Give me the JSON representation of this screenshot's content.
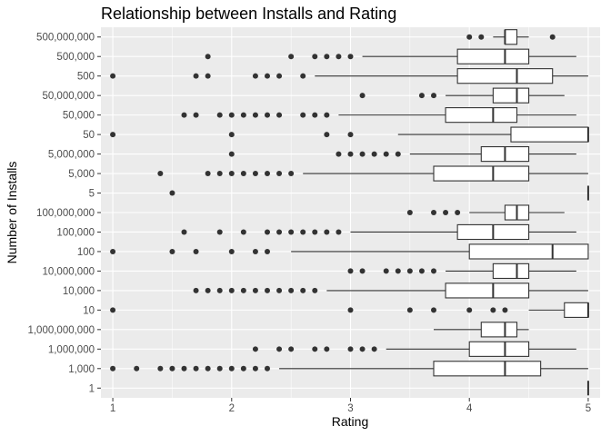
{
  "chart_data": {
    "type": "boxplot",
    "orientation": "horizontal",
    "title": "Relationship between Installs and Rating",
    "xlabel": "Rating",
    "ylabel": "Number of Installs",
    "xlim": [
      0.9,
      5.1
    ],
    "x_ticks": [
      1,
      2,
      3,
      4,
      5
    ],
    "x_tick_labels": [
      "1",
      "2",
      "3",
      "4",
      "5"
    ],
    "grid": true,
    "legend": "none",
    "colors": {
      "panel": "#ebebeb",
      "grid": "#ffffff",
      "box_fill": "#ffffff",
      "box_line": "#333333",
      "outlier": "#333333",
      "tick": "#333333"
    },
    "categories": [
      "500,000,000",
      "500,000",
      "500",
      "50,000,000",
      "50,000",
      "50",
      "5,000,000",
      "5,000",
      "5",
      "100,000,000",
      "100,000",
      "100",
      "10,000,000",
      "10,000",
      "10",
      "1,000,000,000",
      "1,000,000",
      "1,000",
      "1"
    ],
    "boxes": [
      {
        "category": "500,000,000",
        "whisker_low": 4.2,
        "q1": 4.3,
        "median": 4.3,
        "q3": 4.4,
        "whisker_high": 4.5,
        "outliers": [
          4.0,
          4.1,
          4.7
        ]
      },
      {
        "category": "500,000",
        "whisker_low": 3.1,
        "q1": 3.9,
        "median": 4.3,
        "q3": 4.5,
        "whisker_high": 4.9,
        "outliers": [
          1.8,
          2.5,
          2.7,
          2.8,
          2.9,
          3.0
        ]
      },
      {
        "category": "500",
        "whisker_low": 2.7,
        "q1": 3.9,
        "median": 4.4,
        "q3": 4.7,
        "whisker_high": 5.0,
        "outliers": [
          1.0,
          1.7,
          1.8,
          2.2,
          2.3,
          2.4,
          2.6
        ]
      },
      {
        "category": "50,000,000",
        "whisker_low": 3.8,
        "q1": 4.2,
        "median": 4.4,
        "q3": 4.5,
        "whisker_high": 4.8,
        "outliers": [
          3.1,
          3.6,
          3.7
        ]
      },
      {
        "category": "50,000",
        "whisker_low": 2.9,
        "q1": 3.8,
        "median": 4.2,
        "q3": 4.4,
        "whisker_high": 4.9,
        "outliers": [
          1.6,
          1.7,
          1.9,
          2.0,
          2.1,
          2.2,
          2.3,
          2.4,
          2.6,
          2.7,
          2.8
        ]
      },
      {
        "category": "50",
        "whisker_low": 3.4,
        "q1": 4.35,
        "median": 5.0,
        "q3": 5.0,
        "whisker_high": 5.0,
        "outliers": [
          1.0,
          2.0,
          2.8,
          3.0
        ]
      },
      {
        "category": "5,000,000",
        "whisker_low": 3.5,
        "q1": 4.1,
        "median": 4.3,
        "q3": 4.5,
        "whisker_high": 4.9,
        "outliers": [
          2.0,
          2.9,
          3.0,
          3.1,
          3.2,
          3.3,
          3.4
        ]
      },
      {
        "category": "5,000",
        "whisker_low": 2.6,
        "q1": 3.7,
        "median": 4.2,
        "q3": 4.5,
        "whisker_high": 5.0,
        "outliers": [
          1.4,
          1.8,
          1.9,
          2.0,
          2.1,
          2.2,
          2.3,
          2.4,
          2.5
        ]
      },
      {
        "category": "5",
        "whisker_low": 5.0,
        "q1": 5.0,
        "median": 5.0,
        "q3": 5.0,
        "whisker_high": 5.0,
        "outliers": [
          1.5
        ]
      },
      {
        "category": "100,000,000",
        "whisker_low": 4.0,
        "q1": 4.3,
        "median": 4.4,
        "q3": 4.5,
        "whisker_high": 4.8,
        "outliers": [
          3.5,
          3.7,
          3.8,
          3.9
        ]
      },
      {
        "category": "100,000",
        "whisker_low": 3.0,
        "q1": 3.9,
        "median": 4.2,
        "q3": 4.5,
        "whisker_high": 4.9,
        "outliers": [
          1.6,
          1.9,
          2.1,
          2.3,
          2.4,
          2.5,
          2.6,
          2.7,
          2.8,
          2.9
        ]
      },
      {
        "category": "100",
        "whisker_low": 2.5,
        "q1": 4.0,
        "median": 4.7,
        "q3": 5.0,
        "whisker_high": 5.0,
        "outliers": [
          1.0,
          1.5,
          1.7,
          2.0,
          2.2,
          2.3
        ]
      },
      {
        "category": "10,000,000",
        "whisker_low": 3.8,
        "q1": 4.2,
        "median": 4.4,
        "q3": 4.5,
        "whisker_high": 4.9,
        "outliers": [
          3.0,
          3.1,
          3.3,
          3.4,
          3.5,
          3.6,
          3.7
        ]
      },
      {
        "category": "10,000",
        "whisker_low": 2.8,
        "q1": 3.8,
        "median": 4.2,
        "q3": 4.5,
        "whisker_high": 5.0,
        "outliers": [
          1.7,
          1.8,
          1.9,
          2.0,
          2.1,
          2.2,
          2.3,
          2.4,
          2.5,
          2.6,
          2.7
        ]
      },
      {
        "category": "10",
        "whisker_low": 4.5,
        "q1": 4.8,
        "median": 5.0,
        "q3": 5.0,
        "whisker_high": 5.0,
        "outliers": [
          1.0,
          3.0,
          3.5,
          3.7,
          4.0,
          4.2,
          4.3
        ]
      },
      {
        "category": "1,000,000,000",
        "whisker_low": 3.7,
        "q1": 4.1,
        "median": 4.3,
        "q3": 4.4,
        "whisker_high": 4.5,
        "outliers": []
      },
      {
        "category": "1,000,000",
        "whisker_low": 3.3,
        "q1": 4.0,
        "median": 4.3,
        "q3": 4.5,
        "whisker_high": 4.9,
        "outliers": [
          2.2,
          2.4,
          2.5,
          2.7,
          2.8,
          3.0,
          3.1,
          3.2
        ]
      },
      {
        "category": "1,000",
        "whisker_low": 2.4,
        "q1": 3.7,
        "median": 4.3,
        "q3": 4.6,
        "whisker_high": 5.0,
        "outliers": [
          1.0,
          1.2,
          1.4,
          1.5,
          1.6,
          1.7,
          1.8,
          1.9,
          2.0,
          2.1,
          2.2,
          2.3
        ]
      },
      {
        "category": "1",
        "whisker_low": 5.0,
        "q1": 5.0,
        "median": 5.0,
        "q3": 5.0,
        "whisker_high": 5.0,
        "outliers": []
      }
    ]
  }
}
